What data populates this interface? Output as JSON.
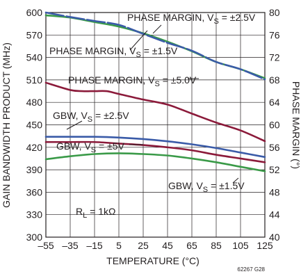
{
  "chart_data": {
    "type": "line",
    "xlabel": "TEMPERATURE (°C)",
    "ylabel_left": "GAIN BANDWIDTH PRODUCT (MHz)",
    "ylabel_right": "PHASE MARGIN (°)",
    "xlim": [
      -55,
      125
    ],
    "ylim_left": [
      300,
      600
    ],
    "ylim_right": [
      40,
      80
    ],
    "x_ticks": [
      -55,
      -35,
      -15,
      5,
      25,
      45,
      65,
      85,
      105,
      125
    ],
    "y_left_ticks": [
      300,
      330,
      360,
      390,
      420,
      450,
      480,
      510,
      540,
      570,
      600
    ],
    "y_right_ticks": [
      40,
      44,
      48,
      52,
      56,
      60,
      64,
      68,
      72,
      76,
      80
    ],
    "grid": true,
    "figure_id": "62267 G28",
    "series": [
      {
        "name": "PHASE MARGIN, VS = ±2.5V",
        "axis": "right",
        "color": "#3a5ba8",
        "dashed": true,
        "x": [
          -55,
          -35,
          -15,
          5,
          25,
          45,
          65,
          85,
          105,
          125
        ],
        "y": [
          80,
          79.2,
          78.5,
          77.8,
          76.2,
          74.6,
          73.2,
          71.2,
          69.9,
          68.1
        ]
      },
      {
        "name": "PHASE MARGIN, VS = ±1.5V",
        "axis": "right",
        "color": "#3a9a48",
        "x": [
          -55,
          -35,
          -15,
          5,
          25,
          45,
          65,
          85,
          105,
          125
        ],
        "y": [
          79.5,
          79.1,
          78.3,
          77.5,
          76.3,
          74.8,
          73.1,
          71.2,
          69.9,
          68.3
        ]
      },
      {
        "name": "PHASE MARGIN, VS = ±5.0V",
        "axis": "right",
        "color": "#8b1a3a",
        "x": [
          -55,
          -35,
          -25,
          -15,
          -5,
          5,
          25,
          45,
          65,
          85,
          105,
          125
        ],
        "y": [
          67.5,
          66.2,
          66.0,
          66.0,
          66.0,
          65.5,
          64.5,
          63.6,
          62.0,
          60.4,
          59.0,
          57.1
        ]
      },
      {
        "name": "GBW, VS = ±2.5V",
        "axis": "left",
        "color": "#3a5ba8",
        "x": [
          -55,
          -35,
          -15,
          5,
          25,
          45,
          65,
          85,
          105,
          125
        ],
        "y": [
          434,
          434,
          434,
          433,
          431,
          428,
          424,
          419,
          413,
          407
        ]
      },
      {
        "name": "GBW, VS = ±1.5V",
        "axis": "left",
        "color": "#8b1a3a",
        "x": [
          -55,
          -35,
          -15,
          5,
          25,
          45,
          65,
          85,
          105,
          125
        ],
        "y": [
          427,
          427,
          427,
          425,
          423,
          420,
          416,
          410,
          405,
          400
        ]
      },
      {
        "name": "GBW, VS = ±5V",
        "axis": "left",
        "color": "#3a9a48",
        "x": [
          -55,
          -35,
          -15,
          5,
          25,
          45,
          65,
          85,
          105,
          125
        ],
        "y": [
          404,
          408,
          411,
          412,
          411,
          409,
          405,
          400,
          394,
          388
        ]
      }
    ],
    "annotations": [
      {
        "prefix": "PHASE MARGIN, V",
        "sub": "S",
        "suffix": " = ±2.5V"
      },
      {
        "prefix": "PHASE MARGIN, V",
        "sub": "S",
        "suffix": " = ±1.5V"
      },
      {
        "prefix": "PHASE MARGIN, V",
        "sub": "S",
        "suffix": " = ±5.0V"
      },
      {
        "prefix": "GBW, V",
        "sub": "S",
        "suffix": " = ±2.5V"
      },
      {
        "prefix": "GBW, V",
        "sub": "S",
        "suffix": " = ±5V"
      },
      {
        "prefix": "GBW, V",
        "sub": "S",
        "suffix": " = ±1.5V"
      },
      {
        "prefix": "R",
        "sub": "L",
        "suffix": " = 1kΩ"
      }
    ]
  }
}
